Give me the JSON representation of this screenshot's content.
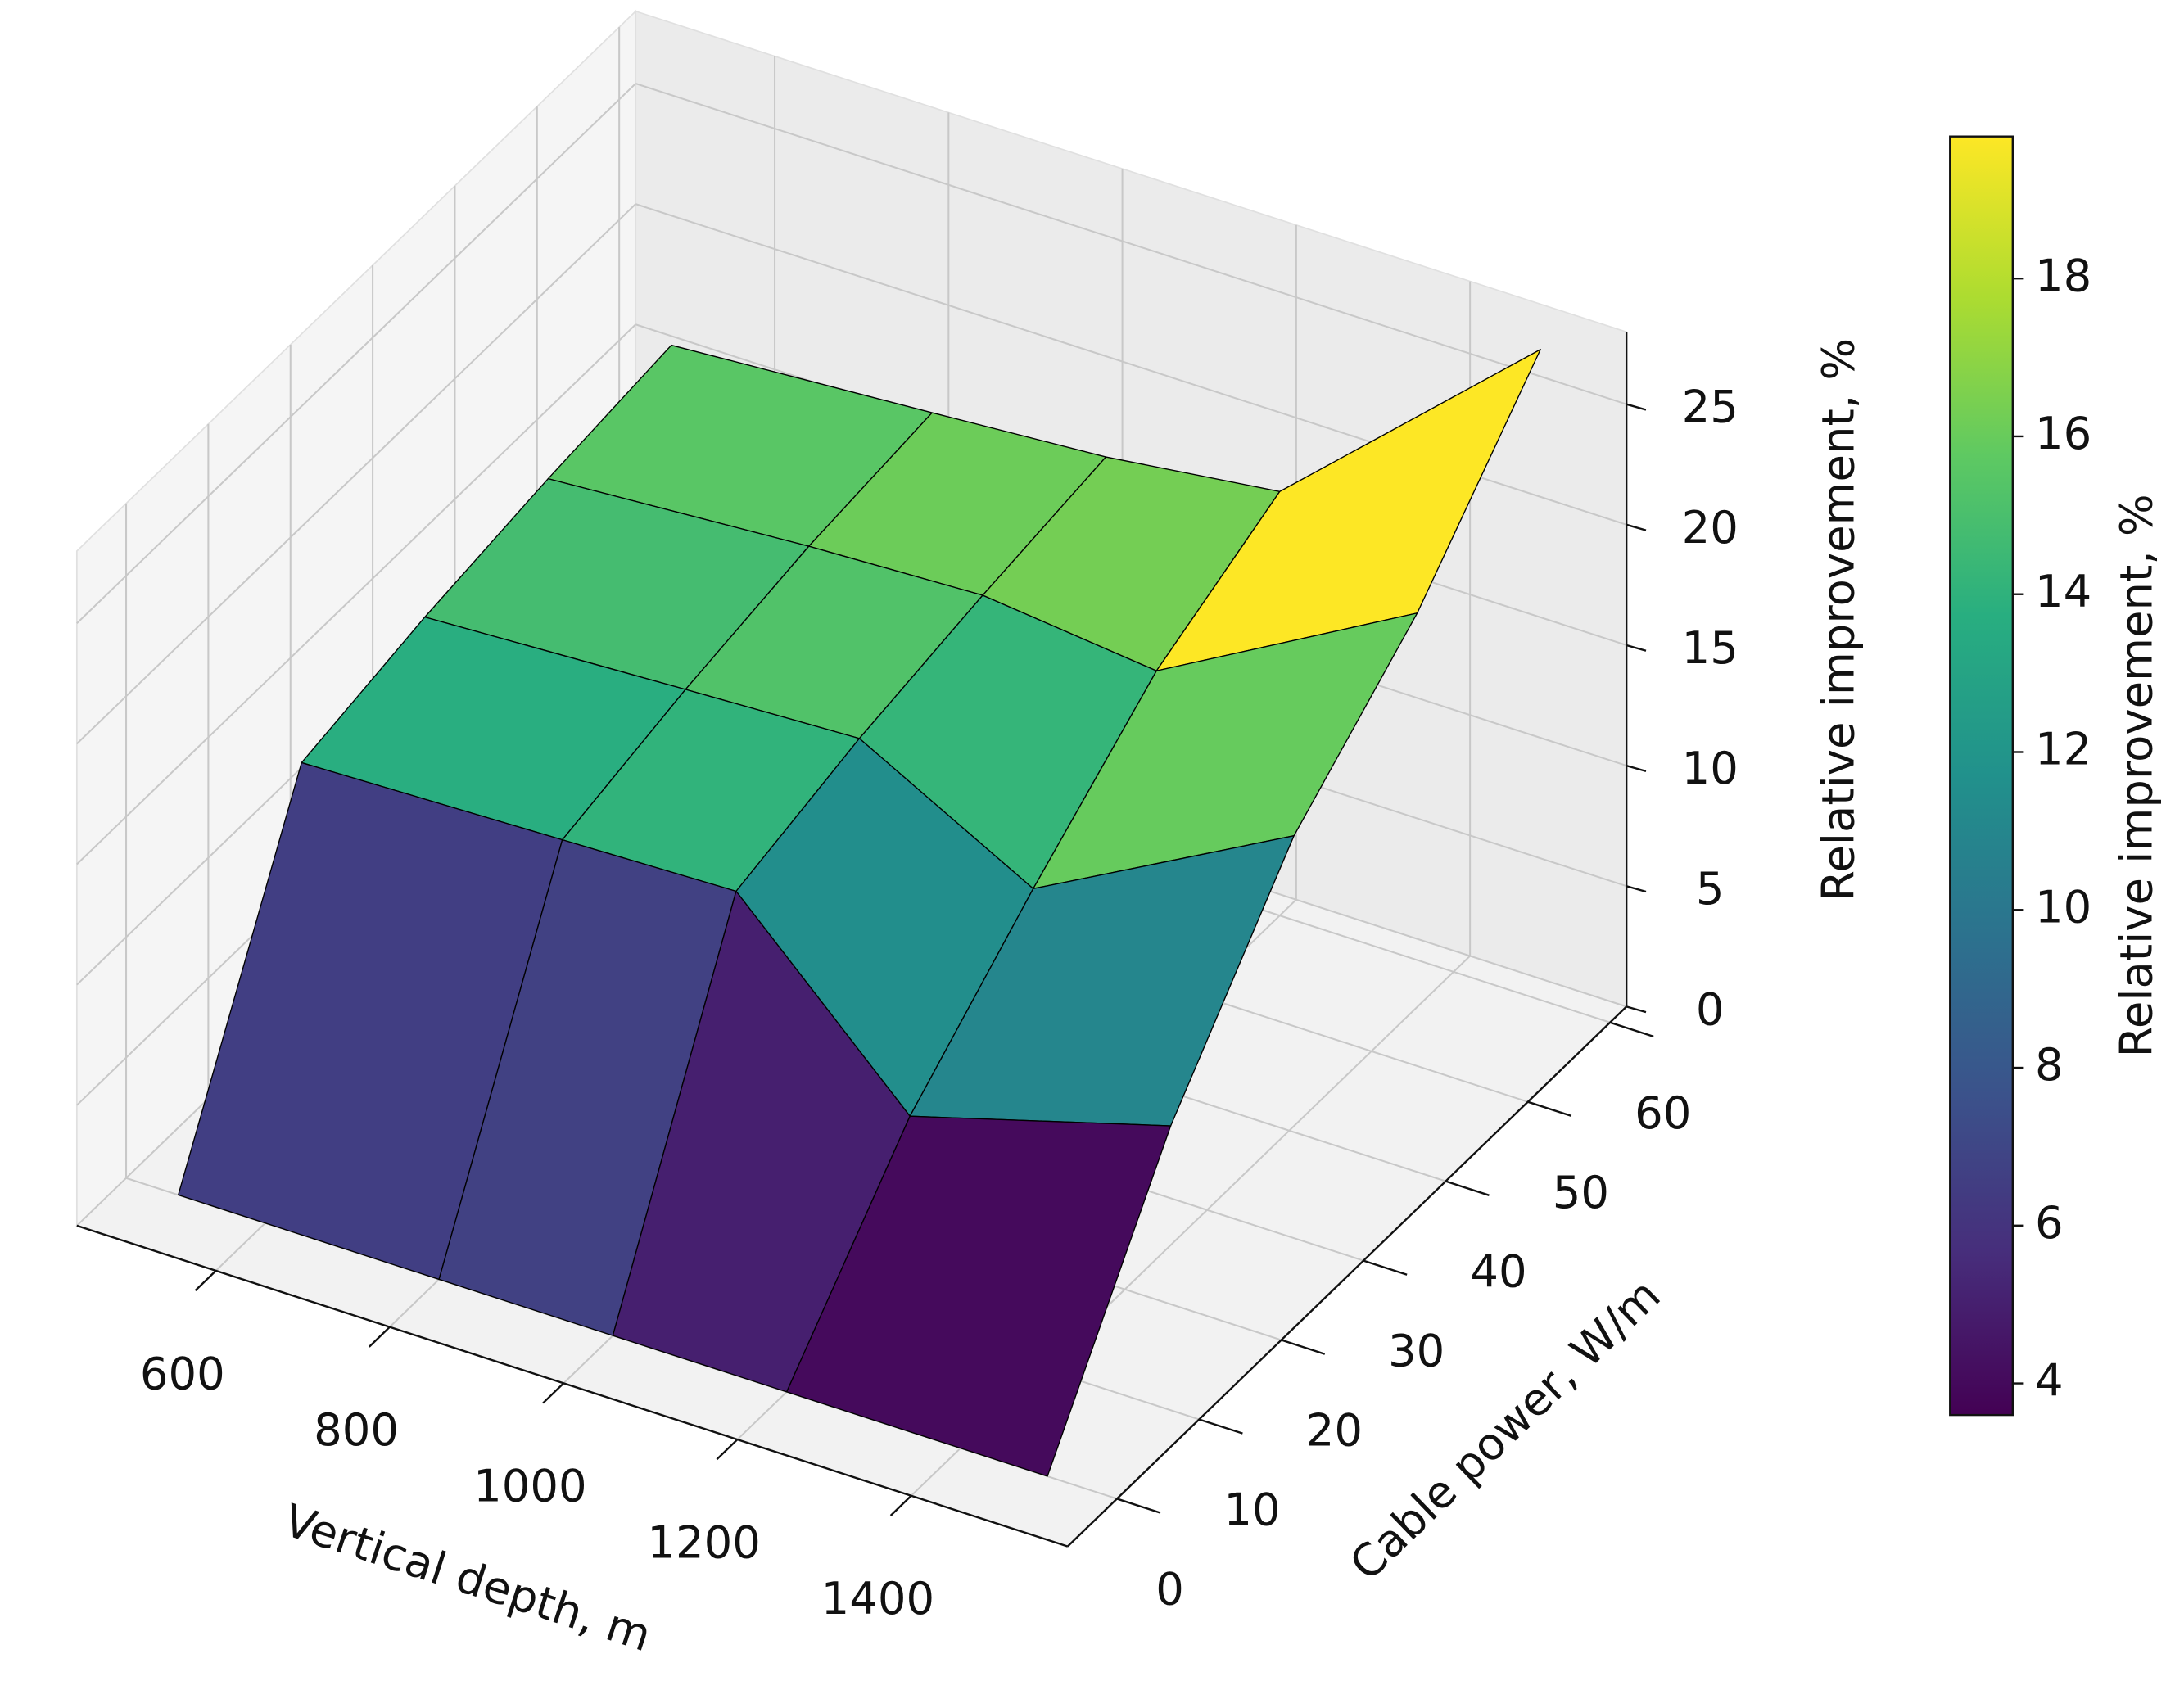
{
  "chart_data": {
    "type": "surface",
    "x": [
      500,
      800,
      1000,
      1200,
      1500
    ],
    "y": [
      0,
      15,
      30,
      45,
      60
    ],
    "z": [
      [
        0,
        0,
        0,
        0,
        0
      ],
      [
        13.0,
        13.3,
        13.5,
        6.5,
        9.6
      ],
      [
        14.1,
        14.6,
        14.9,
        11.0,
        16.7
      ],
      [
        14.9,
        15.6,
        15.9,
        15.1,
        21
      ],
      [
        15.5,
        16.2,
        16.7,
        17.6,
        27
      ]
    ],
    "xlabel": "Vertical depth, m",
    "ylabel": "Cable power, W/m",
    "zlabel": "Relative improvement, %",
    "xlim": [
      440,
      1580
    ],
    "ylim": [
      -6,
      62
    ],
    "zlim": [
      0,
      28
    ],
    "xticks": [
      600,
      800,
      1000,
      1200,
      1400
    ],
    "yticks": [
      0,
      10,
      20,
      30,
      40,
      50,
      60
    ],
    "zticks": [
      0,
      5,
      10,
      15,
      20,
      25
    ],
    "grid": true,
    "colormap": "viridis",
    "colorbar": {
      "label": "Relative improvement, %",
      "clim": [
        3.6,
        19.8
      ],
      "ticks": [
        4,
        6,
        8,
        10,
        12,
        14,
        16,
        18
      ]
    }
  }
}
